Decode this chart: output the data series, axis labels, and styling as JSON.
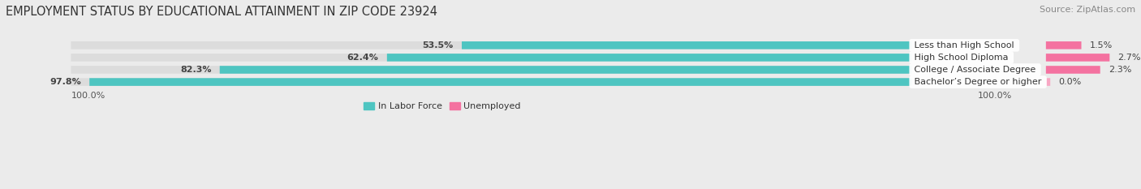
{
  "title": "EMPLOYMENT STATUS BY EDUCATIONAL ATTAINMENT IN ZIP CODE 23924",
  "source": "Source: ZipAtlas.com",
  "categories": [
    "Less than High School",
    "High School Diploma",
    "College / Associate Degree",
    "Bachelor’s Degree or higher"
  ],
  "in_labor_force": [
    53.5,
    62.4,
    82.3,
    97.8
  ],
  "unemployed": [
    1.5,
    2.7,
    2.3,
    0.0
  ],
  "labor_force_color": "#4EC5C1",
  "unemployed_color": "#F472A0",
  "unemployed_color_light": "#F8A8C4",
  "bg_color": "#EBEBEB",
  "bar_bg_color": "#DCDCDC",
  "bar_height": 0.62,
  "x_left_label": "100.0%",
  "x_right_label": "100.0%",
  "legend_labor": "In Labor Force",
  "legend_unemployed": "Unemployed",
  "title_fontsize": 10.5,
  "source_fontsize": 8,
  "tick_fontsize": 8,
  "label_fontsize": 8,
  "category_fontsize": 8,
  "pct_label_fontsize": 8
}
